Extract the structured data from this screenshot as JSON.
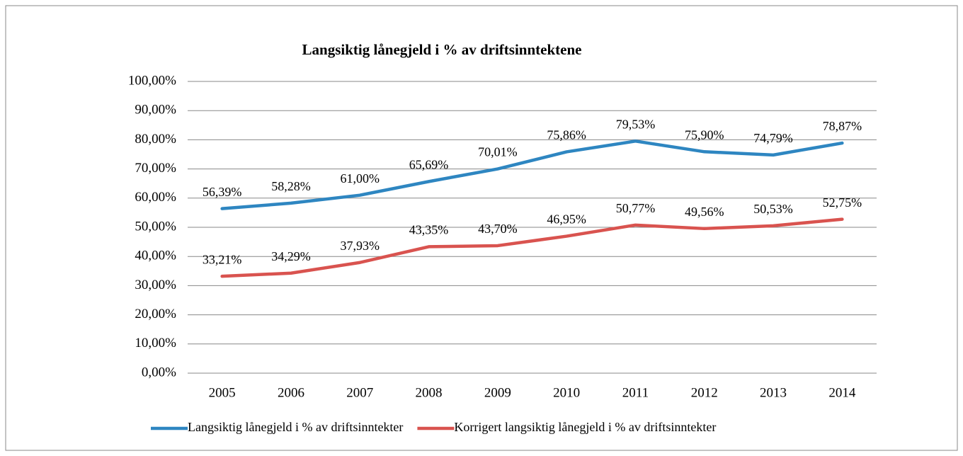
{
  "chart_data": {
    "type": "line",
    "title": "Langsiktig lånegjeld i % av driftsinntektene",
    "categories": [
      "2005",
      "2006",
      "2007",
      "2008",
      "2009",
      "2010",
      "2011",
      "2012",
      "2013",
      "2014"
    ],
    "series": [
      {
        "name": "Langsiktig lånegjeld i % av driftsinntekter",
        "color": "#2e86c1",
        "values": [
          56.39,
          58.28,
          61.0,
          65.69,
          70.01,
          75.86,
          79.53,
          75.9,
          74.79,
          78.87
        ],
        "value_labels": [
          "56,39%",
          "58,28%",
          "61,00%",
          "65,69%",
          "70,01%",
          "75,86%",
          "79,53%",
          "75,90%",
          "74,79%",
          "78,87%"
        ]
      },
      {
        "name": "Korrigert langsiktig lånegjeld i % av driftsinntekter",
        "color": "#d9534f",
        "values": [
          33.21,
          34.29,
          37.93,
          43.35,
          43.7,
          46.95,
          50.77,
          49.56,
          50.53,
          52.75
        ],
        "value_labels": [
          "33,21%",
          "34,29%",
          "37,93%",
          "43,35%",
          "43,70%",
          "46,95%",
          "50,77%",
          "49,56%",
          "50,53%",
          "52,75%"
        ]
      }
    ],
    "ylim": [
      0,
      100
    ],
    "yticks": [
      {
        "value": 0,
        "label": "0,00%"
      },
      {
        "value": 10,
        "label": "10,00%"
      },
      {
        "value": 20,
        "label": "20,00%"
      },
      {
        "value": 30,
        "label": "30,00%"
      },
      {
        "value": 40,
        "label": "40,00%"
      },
      {
        "value": 50,
        "label": "50,00%"
      },
      {
        "value": 60,
        "label": "60,00%"
      },
      {
        "value": 70,
        "label": "70,00%"
      },
      {
        "value": 80,
        "label": "80,00%"
      },
      {
        "value": 90,
        "label": "90,00%"
      },
      {
        "value": 100,
        "label": "100,00%"
      }
    ],
    "grid": true,
    "legend": "bottom"
  }
}
